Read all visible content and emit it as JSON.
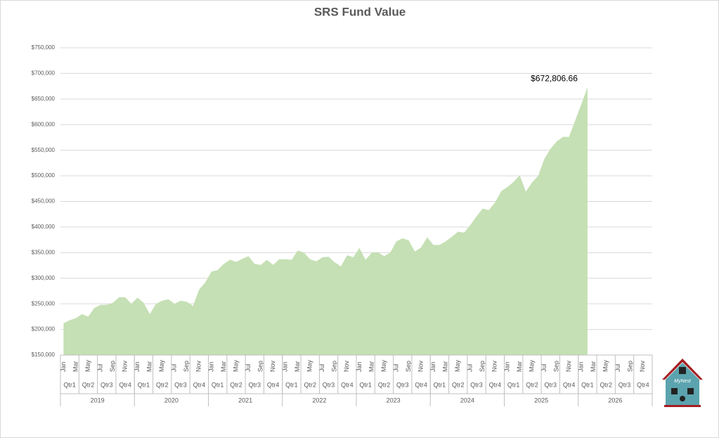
{
  "chart_data": {
    "type": "area",
    "title": "SRS Fund Value",
    "categories": [
      "Jan",
      null,
      "Mar",
      null,
      "May",
      null,
      "Jul",
      null,
      "Sep",
      null,
      "Nov",
      null,
      "Jan",
      null,
      "Mar",
      null,
      "May",
      null,
      "Jul",
      null,
      "Sep",
      null,
      "Nov",
      null,
      "Jan",
      null,
      "Mar",
      null,
      "May",
      null,
      "Jul",
      null,
      "Sep",
      null,
      "Nov",
      null,
      "Jan",
      null,
      "Mar",
      null,
      "May",
      null,
      "Jul",
      null,
      "Sep",
      null,
      "Nov",
      null,
      "Jan",
      null,
      "Mar",
      null,
      "May",
      null,
      "Jul",
      null,
      "Sep",
      null,
      "Nov",
      null,
      "Jan",
      null,
      "Mar",
      null,
      "May",
      null,
      "Jul",
      null,
      "Sep",
      null,
      "Nov",
      null,
      "Jan",
      null,
      "Mar",
      null,
      "May",
      null,
      "Jul",
      null,
      "Sep",
      null,
      "Nov",
      null,
      "Jan",
      null,
      "Mar",
      null,
      "May",
      null,
      "Jul",
      null,
      "Sep",
      null,
      "Nov",
      null
    ],
    "quarters": [
      "Qtr1",
      "Qtr2",
      "Qtr3",
      "Qtr4",
      "Qtr1",
      "Qtr2",
      "Qtr3",
      "Qtr4",
      "Qtr1",
      "Qtr2",
      "Qtr3",
      "Qtr4",
      "Qtr1",
      "Qtr2",
      "Qtr3",
      "Qtr4",
      "Qtr1",
      "Qtr2",
      "Qtr3",
      "Qtr4",
      "Qtr1",
      "Qtr2",
      "Qtr3",
      "Qtr4",
      "Qtr1",
      "Qtr2",
      "Qtr3",
      "Qtr4",
      "Qtr1",
      "Qtr2",
      "Qtr3",
      "Qtr4"
    ],
    "years": [
      "2019",
      "2020",
      "2021",
      "2022",
      "2023",
      "2024",
      "2025",
      "2026"
    ],
    "values": [
      212000,
      218000,
      222000,
      230000,
      225000,
      242000,
      248000,
      248000,
      252000,
      263000,
      263000,
      250000,
      262000,
      252000,
      230000,
      250000,
      256000,
      259000,
      250000,
      256000,
      254000,
      246000,
      278000,
      292000,
      313000,
      316000,
      328000,
      336000,
      332000,
      338000,
      343000,
      328000,
      326000,
      336000,
      326000,
      337000,
      337000,
      336000,
      354000,
      350000,
      337000,
      333000,
      341000,
      342000,
      331000,
      323000,
      345000,
      341000,
      359000,
      336000,
      350000,
      351000,
      343000,
      350000,
      372000,
      378000,
      374000,
      352000,
      360000,
      380000,
      365000,
      365000,
      372000,
      381000,
      391000,
      389000,
      404000,
      421000,
      436000,
      433000,
      448000,
      470000,
      478000,
      488000,
      501000,
      469000,
      487000,
      500000,
      533000,
      553000,
      567000,
      576000,
      576000,
      608000,
      640000,
      672806.66,
      null,
      null,
      null,
      null,
      null,
      null,
      null,
      null,
      null,
      null
    ],
    "value_labels": [
      null,
      null,
      null,
      null,
      null,
      null,
      null,
      null,
      null,
      null,
      null,
      null,
      null,
      null,
      null,
      null,
      null,
      null,
      null,
      null,
      null,
      null,
      null,
      null,
      null,
      null,
      null,
      null,
      null,
      null,
      null,
      null,
      null,
      null,
      null,
      null,
      null,
      null,
      null,
      null,
      null,
      null,
      null,
      null,
      null,
      null,
      null,
      null,
      null,
      null,
      null,
      null,
      null,
      null,
      null,
      null,
      null,
      null,
      null,
      null,
      null,
      null,
      null,
      null,
      null,
      null,
      null,
      null,
      null,
      null,
      null,
      null,
      null,
      null,
      null,
      null,
      null,
      null,
      null,
      null,
      null,
      null,
      null,
      null,
      null,
      "$672,806.66",
      null,
      null,
      null,
      null,
      null,
      null,
      null,
      null,
      null,
      null
    ],
    "color": "#c5e0b4",
    "ylim": [
      150000,
      750000
    ],
    "yticks": [
      {
        "value": 150000,
        "label": "$150,000"
      },
      {
        "value": 200000,
        "label": "$200,000"
      },
      {
        "value": 250000,
        "label": "$250,000"
      },
      {
        "value": 300000,
        "label": "$300,000"
      },
      {
        "value": 350000,
        "label": "$350,000"
      },
      {
        "value": 400000,
        "label": "$400,000"
      },
      {
        "value": 450000,
        "label": "$450,000"
      },
      {
        "value": 500000,
        "label": "$500,000"
      },
      {
        "value": 550000,
        "label": "$550,000"
      },
      {
        "value": 600000,
        "label": "$600,000"
      },
      {
        "value": 650000,
        "label": "$650,000"
      },
      {
        "value": 700000,
        "label": "$700,000"
      },
      {
        "value": 750000,
        "label": "$750,000"
      }
    ],
    "grid": true,
    "logo_text": "MyNest"
  }
}
